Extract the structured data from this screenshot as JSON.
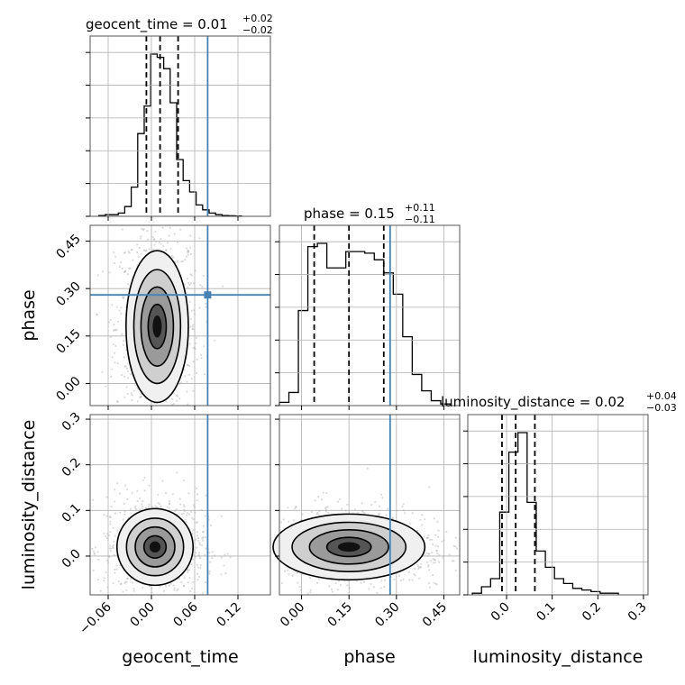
{
  "chart_data": {
    "type": "corner",
    "parameters": [
      "geocent_time",
      "phase",
      "luminosity_distance"
    ],
    "truth_color": "#4682b4",
    "truths": {
      "geocent_time": 0.078,
      "phase": 0.28,
      "luminosity_distance": null
    },
    "titles": [
      {
        "param": "geocent_time",
        "text": "geocent_time = 0.01",
        "plus": "+0.02",
        "minus": "−0.02"
      },
      {
        "param": "phase",
        "text": "phase = 0.15",
        "plus": "+0.11",
        "minus": "−0.11"
      },
      {
        "param": "luminosity_distance",
        "text": "luminosity_distance = 0.02",
        "plus": "+0.04",
        "minus": "−0.03"
      }
    ],
    "axes": {
      "geocent_time": {
        "range": [
          -0.085,
          0.165
        ],
        "ticks": [
          -0.06,
          0.0,
          0.06,
          0.12
        ],
        "tick_labels": [
          "−0.06",
          "0.00",
          "0.06",
          "0.12"
        ],
        "quantiles": [
          -0.007,
          0.012,
          0.037
        ]
      },
      "phase": {
        "range": [
          -0.07,
          0.5
        ],
        "ticks": [
          0.0,
          0.15,
          0.3,
          0.45
        ],
        "tick_labels": [
          "0.00",
          "0.15",
          "0.30",
          "0.45"
        ],
        "quantiles": [
          0.04,
          0.15,
          0.26
        ]
      },
      "luminosity_distance": {
        "range": [
          -0.085,
          0.31
        ],
        "ticks": [
          0.0,
          0.1,
          0.2,
          0.3
        ],
        "tick_labels": [
          "0.0",
          "0.1",
          "0.2",
          "0.3"
        ],
        "quantiles": [
          -0.01,
          0.02,
          0.062
        ]
      }
    },
    "histograms": {
      "geocent_time": {
        "bin_edges": [
          -0.073,
          -0.064,
          -0.055,
          -0.046,
          -0.037,
          -0.028,
          -0.019,
          -0.01,
          -0.001,
          0.008,
          0.017,
          0.026,
          0.035,
          0.044,
          0.053,
          0.062,
          0.071,
          0.08,
          0.089,
          0.098,
          0.107,
          0.116,
          0.125
        ],
        "counts": [
          0.5,
          1,
          1,
          2,
          6,
          18,
          51,
          68,
          100,
          98,
          91,
          70,
          35,
          22,
          15,
          7,
          4,
          2,
          1,
          0.5,
          0.3,
          0.2
        ]
      },
      "phase": {
        "bin_edges": [
          -0.07,
          -0.04,
          -0.01,
          0.02,
          0.05,
          0.08,
          0.11,
          0.14,
          0.17,
          0.2,
          0.23,
          0.26,
          0.29,
          0.32,
          0.35,
          0.38,
          0.41,
          0.44,
          0.47
        ],
        "counts": [
          2,
          8,
          58,
          97,
          99,
          84,
          84,
          94,
          94,
          93,
          89,
          81,
          68,
          42,
          19,
          9,
          3,
          1
        ]
      },
      "luminosity_distance": {
        "bin_edges": [
          -0.075,
          -0.055,
          -0.035,
          -0.015,
          0.005,
          0.025,
          0.045,
          0.065,
          0.085,
          0.105,
          0.125,
          0.145,
          0.165,
          0.185,
          0.205,
          0.225,
          0.245
        ],
        "counts": [
          1,
          5,
          10,
          51,
          88,
          100,
          57,
          27,
          17,
          10,
          7,
          4,
          3,
          2,
          1,
          1
        ]
      }
    },
    "joint": [
      {
        "x": "geocent_time",
        "y": "phase",
        "center": [
          0.008,
          0.18
        ],
        "spread": [
          0.018,
          0.1
        ]
      },
      {
        "x": "geocent_time",
        "y": "luminosity_distance",
        "center": [
          0.005,
          0.02
        ],
        "spread": [
          0.022,
          0.035
        ]
      },
      {
        "x": "phase",
        "y": "luminosity_distance",
        "center": [
          0.15,
          0.02
        ],
        "spread": [
          0.1,
          0.03
        ]
      }
    ]
  }
}
